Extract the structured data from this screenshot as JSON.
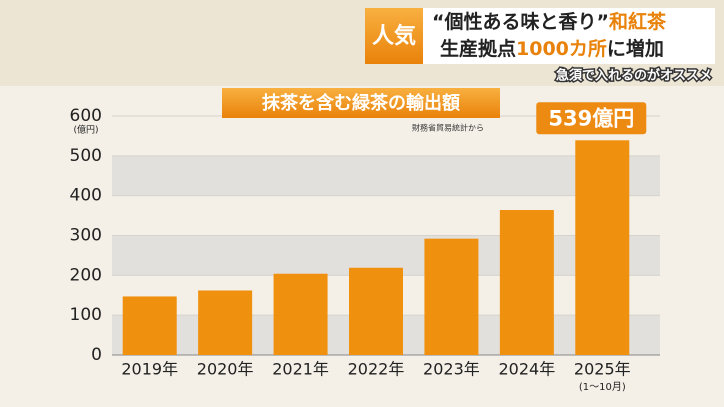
{
  "headline": {
    "tag": "人気",
    "line1_a": "“個性ある味と香り”",
    "line1_b": "和紅茶",
    "line2_a": "生産拠点",
    "line2_b": "1000カ所",
    "line2_c": "に増加",
    "subcaption": "急須で入れるのがオススメ"
  },
  "chart_data": {
    "type": "bar",
    "title": "抹茶を含む緑茶の輸出額",
    "source": "財務省貿易統計から",
    "y_unit": "(億円)",
    "categories": [
      "2019年",
      "2020年",
      "2021年",
      "2022年",
      "2023年",
      "2024年",
      "2025年"
    ],
    "last_category_note": "(1〜10月)",
    "values": [
      147,
      162,
      204,
      219,
      292,
      364,
      539
    ],
    "value_labels": [
      null,
      null,
      null,
      null,
      null,
      null,
      "539億円"
    ],
    "color": "#f0900f",
    "ylim": [
      0,
      600
    ],
    "yticks": [
      0,
      100,
      200,
      300,
      400,
      500,
      600
    ],
    "grid": true
  }
}
